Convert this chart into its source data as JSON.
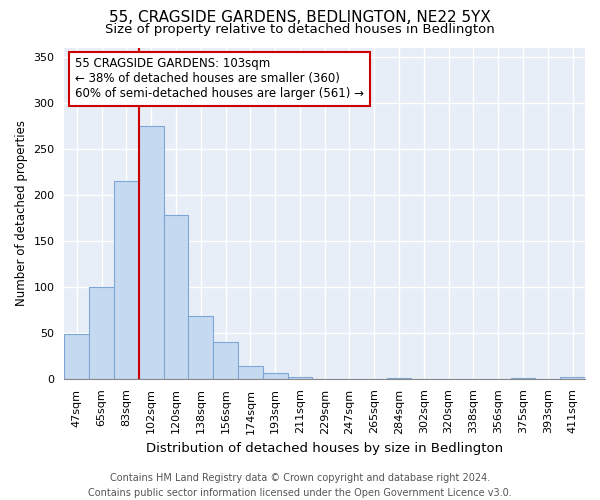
{
  "title": "55, CRAGSIDE GARDENS, BEDLINGTON, NE22 5YX",
  "subtitle": "Size of property relative to detached houses in Bedlington",
  "xlabel": "Distribution of detached houses by size in Bedlington",
  "ylabel": "Number of detached properties",
  "footer_line1": "Contains HM Land Registry data © Crown copyright and database right 2024.",
  "footer_line2": "Contains public sector information licensed under the Open Government Licence v3.0.",
  "bar_labels": [
    "47sqm",
    "65sqm",
    "83sqm",
    "102sqm",
    "120sqm",
    "138sqm",
    "156sqm",
    "174sqm",
    "193sqm",
    "211sqm",
    "229sqm",
    "247sqm",
    "265sqm",
    "284sqm",
    "302sqm",
    "320sqm",
    "338sqm",
    "356sqm",
    "375sqm",
    "393sqm",
    "411sqm"
  ],
  "bar_values": [
    49,
    100,
    215,
    275,
    178,
    68,
    40,
    14,
    6,
    2,
    0,
    0,
    0,
    1,
    0,
    0,
    0,
    0,
    1,
    0,
    2
  ],
  "bar_color": "#c5d9f1",
  "bar_edge_color": "#7da6d4",
  "plot_bg_color": "#e8eef7",
  "vline_color": "#cc0000",
  "vline_pos": 3,
  "annotation_text": "55 CRAGSIDE GARDENS: 103sqm\n← 38% of detached houses are smaller (360)\n60% of semi-detached houses are larger (561) →",
  "annotation_box_color": "white",
  "annotation_box_edge_color": "#cc0000",
  "ylim": [
    0,
    360
  ],
  "yticks": [
    0,
    50,
    100,
    150,
    200,
    250,
    300,
    350
  ],
  "title_fontsize": 11,
  "subtitle_fontsize": 9.5,
  "xlabel_fontsize": 9.5,
  "ylabel_fontsize": 8.5,
  "tick_fontsize": 8,
  "annotation_fontsize": 8.5,
  "footer_fontsize": 7
}
